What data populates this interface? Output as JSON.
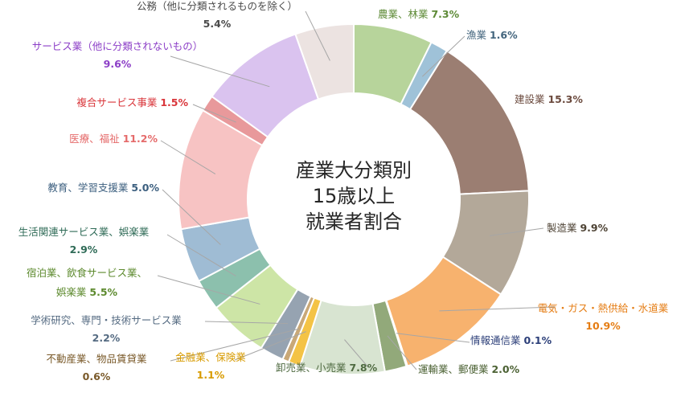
{
  "chart_data": {
    "type": "pie",
    "donut": true,
    "center_title": [
      "産業大分類別",
      "15歳以上",
      "就業者割合"
    ],
    "unit": "%",
    "slices": [
      {
        "label": "農業、林業",
        "value": 7.3,
        "value_label": "7.3%",
        "color": "#b7d49b",
        "text_color": "#5d8a36"
      },
      {
        "label": "漁業",
        "value": 1.6,
        "value_label": "1.6%",
        "color": "#9fc2d8",
        "text_color": "#43657d"
      },
      {
        "label": "建設業",
        "value": 15.3,
        "value_label": "15.3%",
        "color": "#9b7e72",
        "text_color": "#6b4a3e"
      },
      {
        "label": "製造業",
        "value": 9.9,
        "value_label": "9.9%",
        "color": "#b3a899",
        "text_color": "#4d4234"
      },
      {
        "label": "電気・ガス・熱供給・水道業",
        "value": 10.9,
        "value_label": "10.9%",
        "color": "#f7b26e",
        "text_color": "#e57d14"
      },
      {
        "label": "情報通信業",
        "value": 0.1,
        "value_label": "0.1%",
        "color": "#2c3f79",
        "text_color": "#2c3f79"
      },
      {
        "label": "運輸業、郵便業",
        "value": 2.0,
        "value_label": "2.0%",
        "color": "#92a97a",
        "text_color": "#4b6133"
      },
      {
        "label": "卸売業、小売業",
        "value": 7.8,
        "value_label": "7.8%",
        "color": "#d8e4d1",
        "text_color": "#4f6a41"
      },
      {
        "label": "金融業、保険業",
        "value": 1.1,
        "value_label": "1.1%",
        "color": "#f4c345",
        "text_color": "#d89b00"
      },
      {
        "label": "不動産業、物品賃貸業",
        "value": 0.6,
        "value_label": "0.6%",
        "color": "#c9a877",
        "text_color": "#7a5a2a"
      },
      {
        "label": "学術研究、専門・技術サービス業",
        "value": 2.2,
        "value_label": "2.2%",
        "color": "#96a3b1",
        "text_color": "#556b82"
      },
      {
        "label": "宿泊業、飲食サービス業、娯楽業",
        "value": 5.5,
        "value_label": "5.5%",
        "color": "#cde5a6",
        "text_color": "#5d8a2e"
      },
      {
        "label": "生活関連サービス業、娯楽業",
        "value": 2.9,
        "value_label": "2.9%",
        "color": "#8cc0ad",
        "text_color": "#2f6b57"
      },
      {
        "label": "教育、学習支援業",
        "value": 5.0,
        "value_label": "5.0%",
        "color": "#9fbcd4",
        "text_color": "#3c5f7f"
      },
      {
        "label": "医療、福祉",
        "value": 11.2,
        "value_label": "11.2%",
        "color": "#f7c3c3",
        "text_color": "#e56b6b"
      },
      {
        "label": "複合サービス事業",
        "value": 1.5,
        "value_label": "1.5%",
        "color": "#e8999b",
        "text_color": "#d9353a"
      },
      {
        "label": "サービス業（他に分類されないもの）",
        "value": 9.6,
        "value_label": "9.6%",
        "color": "#dac3ef",
        "text_color": "#8c3fc7"
      },
      {
        "label": "公務（他に分類されるものを除く）",
        "value": 5.4,
        "value_label": "5.4%",
        "color": "#ece3e1",
        "text_color": "#4a4a4a"
      }
    ]
  }
}
